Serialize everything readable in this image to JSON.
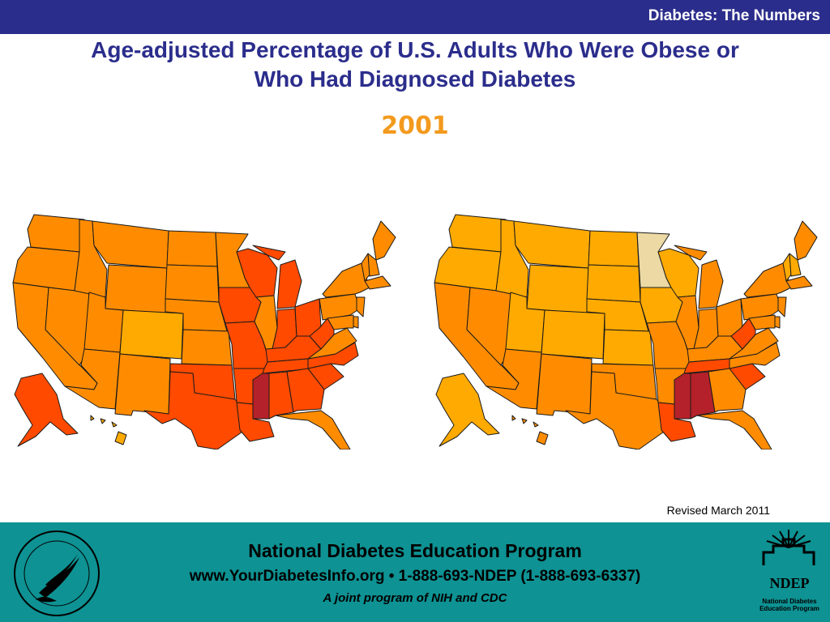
{
  "header": {
    "title": "Diabetes: The Numbers",
    "bar_color": "#2b2d8c"
  },
  "slide": {
    "title_line1": "Age-adjusted Percentage of U.S. Adults Who Were Obese or",
    "title_line2": "Who Had Diagnosed Diabetes",
    "year": "2001"
  },
  "maps": {
    "left_topic": "obesity",
    "right_topic": "diagnosed-diabetes",
    "color_scale": [
      "#ecd9a3",
      "#ffaa00",
      "#ff8c00",
      "#ff4a00",
      "#b5212a"
    ],
    "obesity": {
      "WA": 2,
      "OR": 2,
      "CA": 2,
      "NV": 2,
      "ID": 2,
      "MT": 2,
      "WY": 2,
      "UT": 2,
      "AZ": 2,
      "CO": 1,
      "NM": 2,
      "ND": 2,
      "SD": 2,
      "NE": 2,
      "KS": 2,
      "OK": 3,
      "TX": 3,
      "MN": 2,
      "IA": 3,
      "MO": 3,
      "AR": 3,
      "LA": 3,
      "WI": 3,
      "IL": 2,
      "MI": 3,
      "IN": 3,
      "OH": 3,
      "KY": 3,
      "TN": 3,
      "MS": 4,
      "AL": 3,
      "GA": 3,
      "FL": 2,
      "SC": 3,
      "NC": 3,
      "VA": 2,
      "WV": 3,
      "PA": 2,
      "NY": 2,
      "ME": 2,
      "VT": 2,
      "NH": 2,
      "MA": 2,
      "NJ": 2,
      "DE": 2,
      "MD": 2,
      "AK": 3,
      "HI": 1
    },
    "diagnosed-diabetes": {
      "WA": 1,
      "OR": 1,
      "CA": 2,
      "NV": 2,
      "ID": 1,
      "MT": 1,
      "WY": 1,
      "UT": 1,
      "AZ": 2,
      "CO": 1,
      "NM": 2,
      "ND": 1,
      "SD": 1,
      "NE": 1,
      "KS": 1,
      "OK": 2,
      "TX": 2,
      "MN": 0,
      "IA": 1,
      "MO": 2,
      "AR": 2,
      "LA": 3,
      "WI": 1,
      "IL": 2,
      "MI": 2,
      "IN": 2,
      "OH": 2,
      "KY": 2,
      "TN": 3,
      "MS": 4,
      "AL": 4,
      "GA": 2,
      "FL": 2,
      "SC": 3,
      "NC": 2,
      "VA": 2,
      "WV": 3,
      "PA": 2,
      "NY": 2,
      "ME": 2,
      "VT": 1,
      "NH": 1,
      "MA": 2,
      "NJ": 2,
      "DE": 2,
      "MD": 2,
      "AK": 1,
      "HI": 2
    }
  },
  "revised_note": "Revised March 2011",
  "footer": {
    "org_name": "National Diabetes Education Program",
    "contact": "www.YourDiabetesInfo.org • 1-888-693-NDEP (1-888-693-6337)",
    "joint": "A joint program of NIH and CDC",
    "bg_color": "#0e9293",
    "ndep_abbrev": "NDEP",
    "ndep_full_line1": "National Diabetes",
    "ndep_full_line2": "Education Program",
    "seal_icon": "hhs-seal-icon"
  }
}
